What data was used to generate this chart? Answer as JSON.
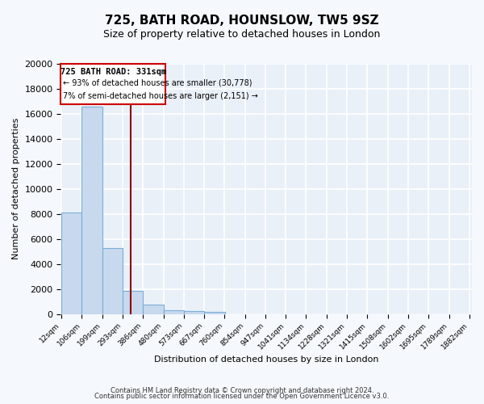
{
  "title": "725, BATH ROAD, HOUNSLOW, TW5 9SZ",
  "subtitle": "Size of property relative to detached houses in London",
  "xlabel": "Distribution of detached houses by size in London",
  "ylabel": "Number of detached properties",
  "bar_values": [
    8100,
    16600,
    5300,
    1850,
    750,
    300,
    250,
    150,
    0,
    0,
    0,
    0,
    0,
    0,
    0,
    0,
    0,
    0,
    0,
    0
  ],
  "bin_labels": [
    "12sqm",
    "106sqm",
    "199sqm",
    "293sqm",
    "386sqm",
    "480sqm",
    "573sqm",
    "667sqm",
    "760sqm",
    "854sqm",
    "947sqm",
    "1041sqm",
    "1134sqm",
    "1228sqm",
    "1321sqm",
    "1415sqm",
    "1508sqm",
    "1602sqm",
    "1695sqm",
    "1789sqm",
    "1882sqm"
  ],
  "bin_edges": [
    12,
    106,
    199,
    293,
    386,
    480,
    573,
    667,
    760,
    854,
    947,
    1041,
    1134,
    1228,
    1321,
    1415,
    1508,
    1602,
    1695,
    1789,
    1882
  ],
  "bar_color": "#c8d9ee",
  "bar_edge_color": "#7aaed6",
  "vline_x": 331,
  "vline_color": "#8b0000",
  "ylim": [
    0,
    20000
  ],
  "yticks": [
    0,
    2000,
    4000,
    6000,
    8000,
    10000,
    12000,
    14000,
    16000,
    18000,
    20000
  ],
  "annotation_title": "725 BATH ROAD: 331sqm",
  "annotation_line1": "← 93% of detached houses are smaller (30,778)",
  "annotation_line2": "7% of semi-detached houses are larger (2,151) →",
  "footer1": "Contains HM Land Registry data © Crown copyright and database right 2024.",
  "footer2": "Contains public sector information licensed under the Open Government Licence v3.0.",
  "bg_color": "#eaf0f8",
  "grid_color": "#ffffff",
  "fig_bg": "#f5f8fc"
}
